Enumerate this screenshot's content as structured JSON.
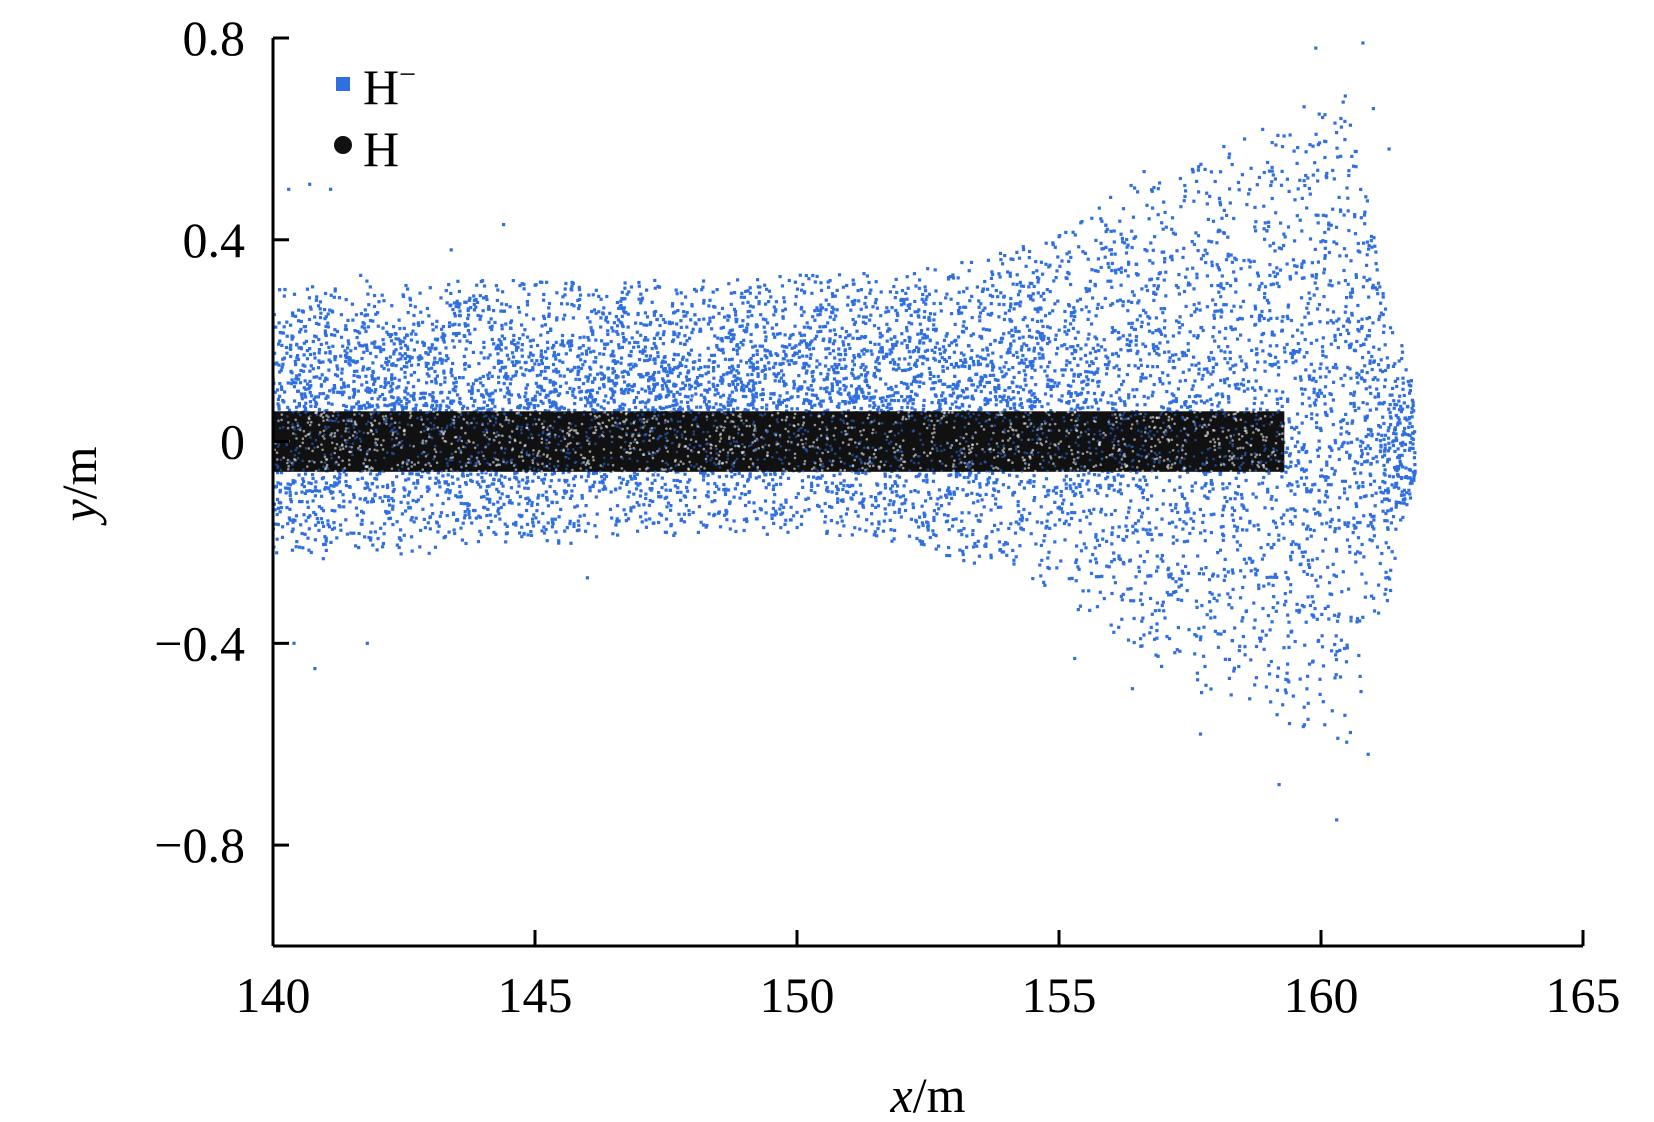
{
  "chart_data": {
    "type": "scatter",
    "title": "",
    "xlabel_var": "x",
    "xlabel_unit": "/m",
    "ylabel_var": "y",
    "ylabel_unit": "/m",
    "xlim": [
      140,
      165
    ],
    "ylim": [
      -1.0,
      0.8
    ],
    "x_ticks": [
      140,
      145,
      150,
      155,
      160,
      165
    ],
    "x_tick_labels": [
      "140",
      "145",
      "150",
      "155",
      "160",
      "165"
    ],
    "y_ticks": [
      0.8,
      0.4,
      0,
      -0.4,
      -0.8
    ],
    "y_tick_labels": [
      "0.8",
      "0.4",
      "0",
      "−0.4",
      "−0.8"
    ],
    "grid": false,
    "legend_position": "top-left",
    "series": [
      {
        "name_base": "H",
        "name_sup": "−",
        "marker": "square",
        "color": "#2f6fe0",
        "x_range": [
          140,
          161.8
        ],
        "envelope": [
          {
            "x": 140,
            "ymin": -0.22,
            "ymax": 0.3
          },
          {
            "x": 142,
            "ymin": -0.22,
            "ymax": 0.32
          },
          {
            "x": 145,
            "ymin": -0.2,
            "ymax": 0.32
          },
          {
            "x": 148,
            "ymin": -0.18,
            "ymax": 0.32
          },
          {
            "x": 150,
            "ymin": -0.18,
            "ymax": 0.33
          },
          {
            "x": 152,
            "ymin": -0.2,
            "ymax": 0.34
          },
          {
            "x": 153.5,
            "ymin": -0.25,
            "ymax": 0.36
          },
          {
            "x": 155,
            "ymin": -0.3,
            "ymax": 0.42
          },
          {
            "x": 156.5,
            "ymin": -0.42,
            "ymax": 0.52
          },
          {
            "x": 158,
            "ymin": -0.5,
            "ymax": 0.58
          },
          {
            "x": 159.5,
            "ymin": -0.58,
            "ymax": 0.66
          },
          {
            "x": 160.5,
            "ymin": -0.6,
            "ymax": 0.7
          },
          {
            "x": 161.2,
            "ymin": -0.35,
            "ymax": 0.3
          },
          {
            "x": 161.8,
            "ymin": -0.1,
            "ymax": 0.12
          }
        ],
        "outliers": [
          [
            140.3,
            0.5
          ],
          [
            140.7,
            0.51
          ],
          [
            141.1,
            0.5
          ],
          [
            140.4,
            -0.4
          ],
          [
            140.8,
            -0.45
          ],
          [
            141.8,
            -0.4
          ],
          [
            143.4,
            0.38
          ],
          [
            144.4,
            0.43
          ],
          [
            146.0,
            -0.27
          ],
          [
            159.9,
            0.78
          ],
          [
            160.8,
            0.79
          ],
          [
            161.0,
            0.66
          ],
          [
            161.3,
            0.58
          ],
          [
            159.2,
            -0.68
          ],
          [
            160.3,
            -0.75
          ],
          [
            160.9,
            -0.62
          ],
          [
            161.1,
            -0.34
          ],
          [
            156.4,
            -0.49
          ],
          [
            157.7,
            -0.58
          ],
          [
            155.3,
            -0.43
          ]
        ]
      },
      {
        "name_base": "H",
        "name_sup": "",
        "marker": "circle",
        "color": "#111111",
        "x_range": [
          140,
          159.3
        ],
        "y_range": [
          -0.06,
          0.06
        ]
      }
    ]
  }
}
